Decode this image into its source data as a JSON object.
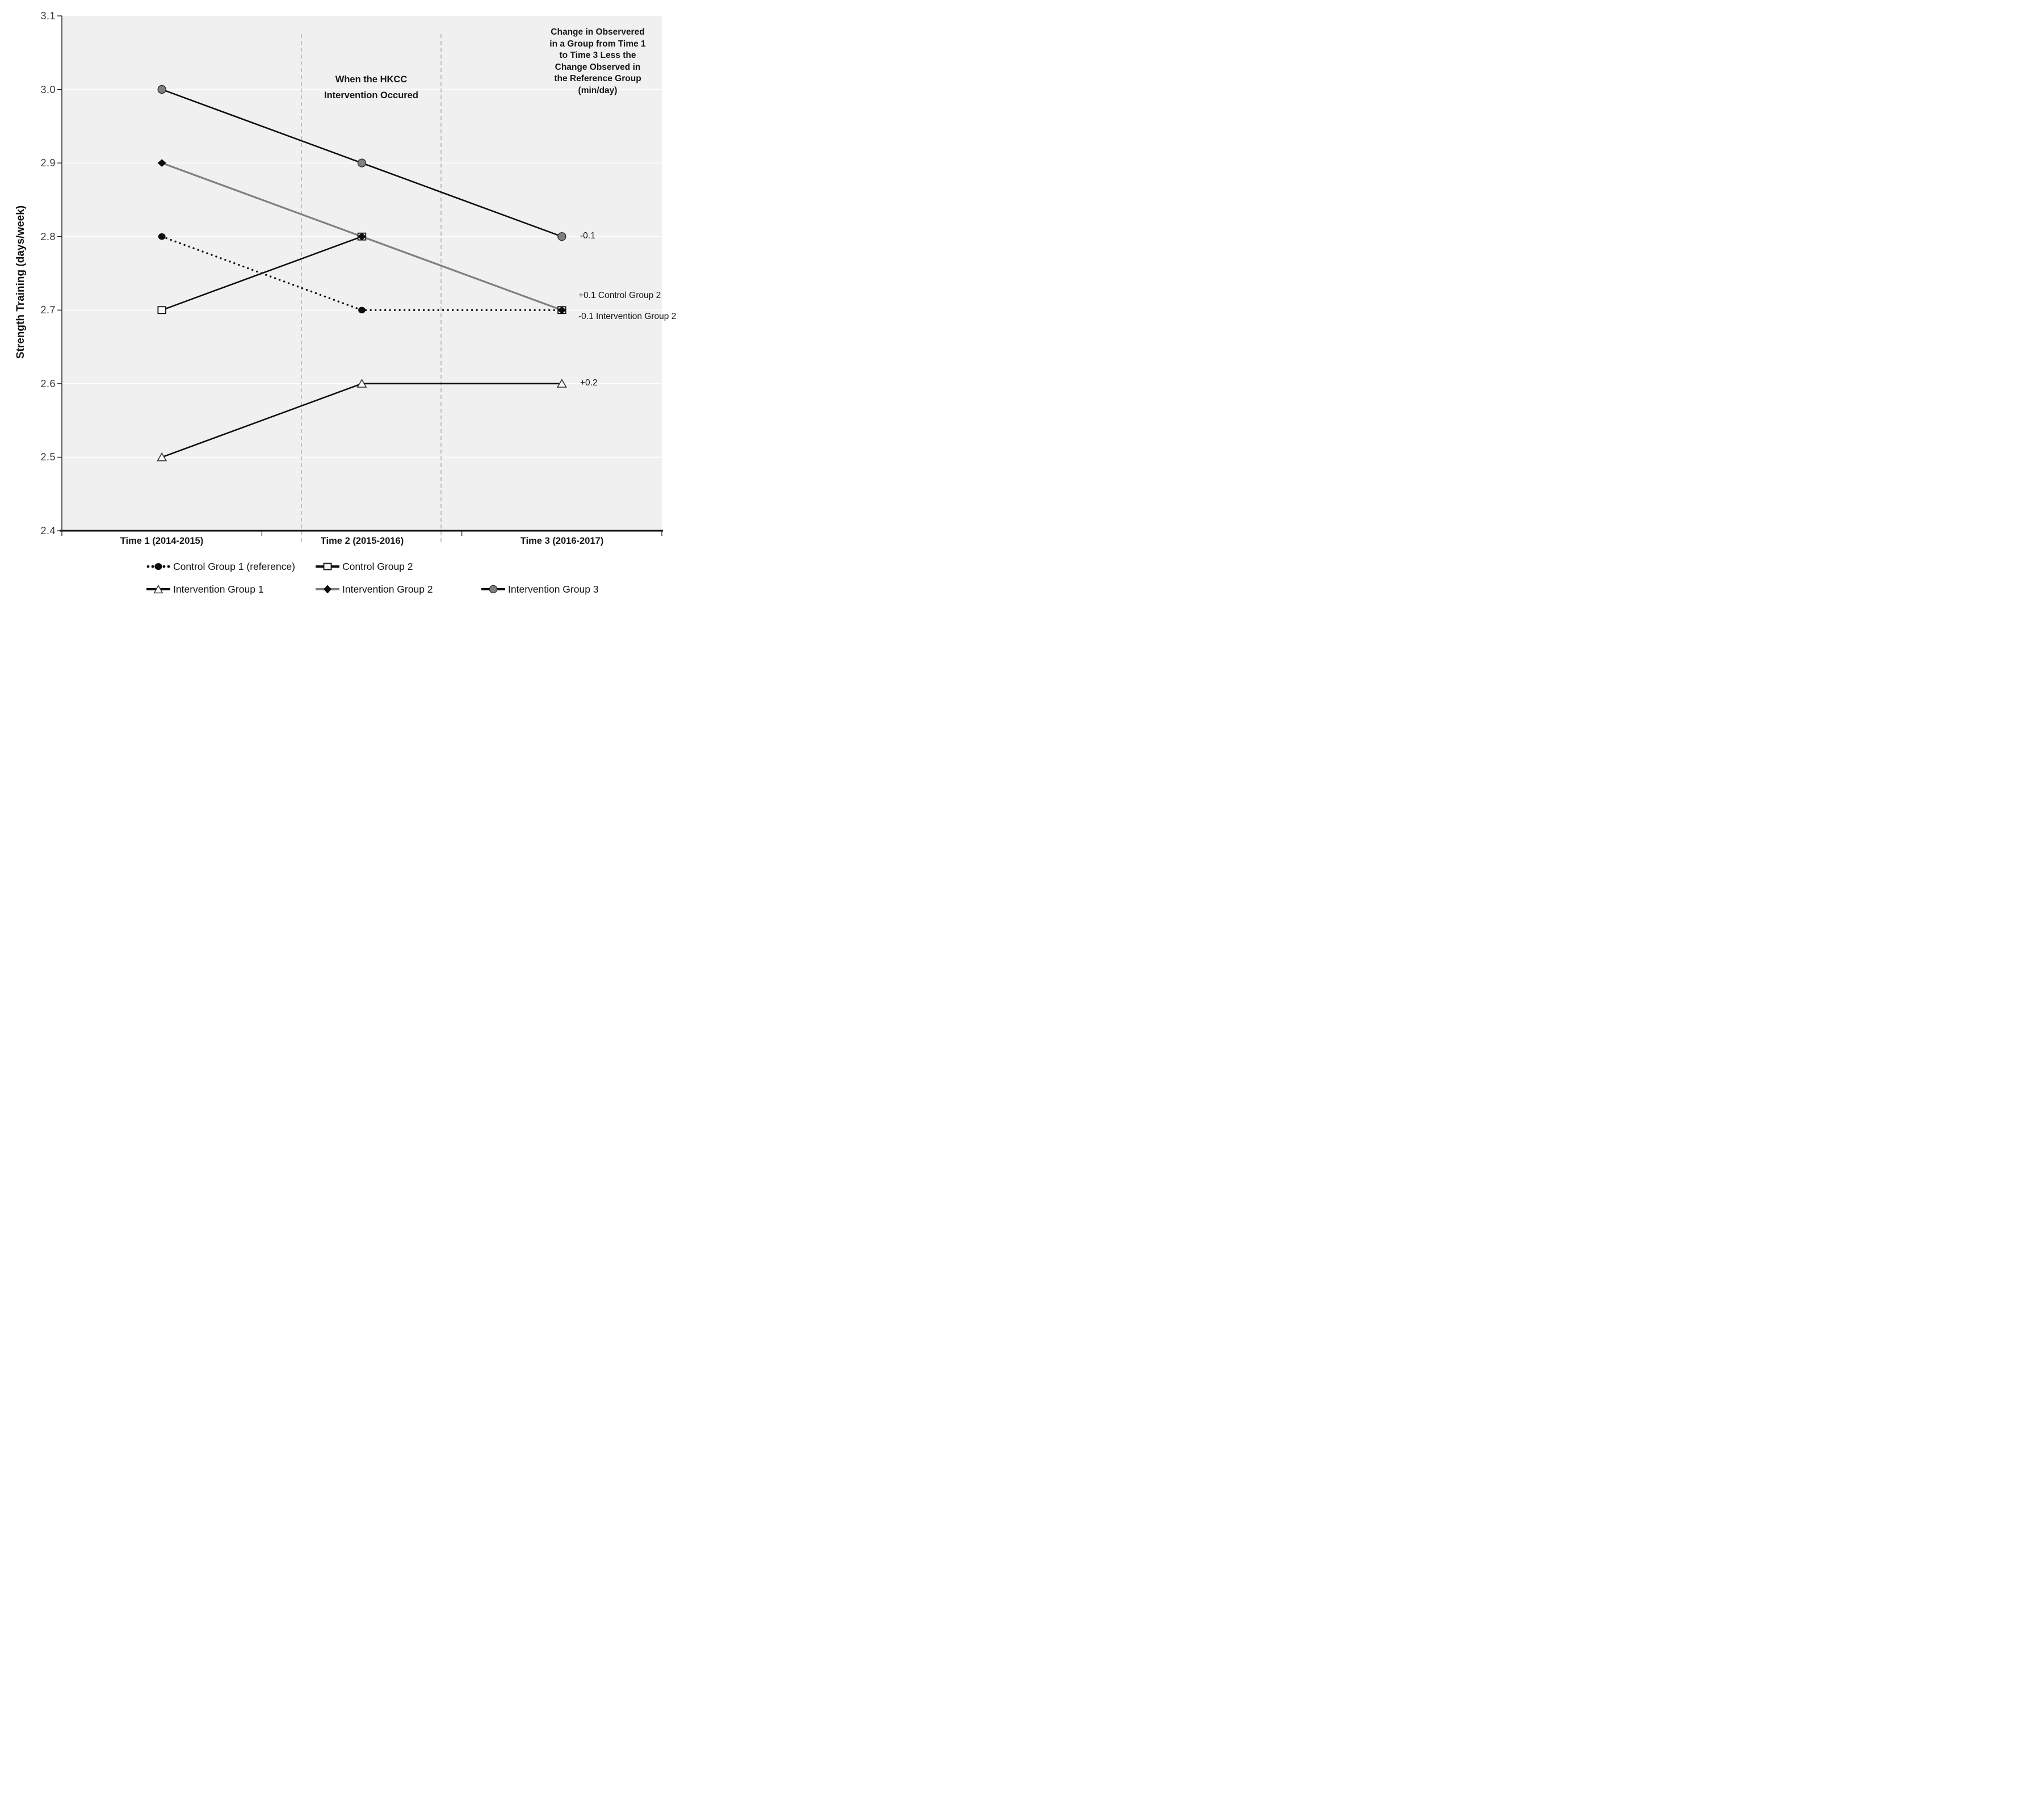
{
  "chart_data": {
    "type": "line",
    "title": "",
    "ylabel": "Strength Training (days/week)",
    "ylim": [
      2.4,
      3.1
    ],
    "ytick_labels": [
      "3.1",
      "3.0",
      "2.9",
      "2.8",
      "2.7",
      "2.6",
      "2.5",
      "2.4"
    ],
    "categories": [
      "Time 1 (2014-2015)",
      "Time 2 (2015-2016)",
      "Time 3 (2016-2017)"
    ],
    "grid": "horizontal white gridlines on light-gray plot area",
    "legend_position": "bottom",
    "plot_bg_color": "#f0f0f0",
    "series": [
      {
        "name": "Control Group 1 (reference)",
        "values": [
          2.8,
          2.7,
          2.7
        ],
        "line_style": "dotted",
        "line_color": "#0d0d0d",
        "marker": "filled-circle"
      },
      {
        "name": "Control Group 2",
        "values": [
          2.7,
          2.8,
          2.7
        ],
        "line_style": "solid",
        "line_color": "#0d0d0d",
        "marker": "open-square"
      },
      {
        "name": "Intervention Group 1",
        "values": [
          2.5,
          2.6,
          2.6
        ],
        "line_style": "solid",
        "line_color": "#0d0d0d",
        "marker": "open-triangle"
      },
      {
        "name": "Intervention Group 2",
        "values": [
          2.9,
          2.8,
          2.7
        ],
        "line_style": "solid",
        "line_color": "#808080",
        "marker": "filled-diamond"
      },
      {
        "name": "Intervention Group 3",
        "values": [
          3.0,
          2.9,
          2.8
        ],
        "line_style": "solid",
        "line_color": "#0d0d0d",
        "marker": "gray-circle"
      }
    ],
    "vertical_dashed_lines": [
      "between Time 1 and Time 2",
      "between Time 2 and Time 3"
    ]
  },
  "annotations": {
    "intervention_window": [
      "When the HKCC",
      "Intervention Occured"
    ],
    "change_note": [
      "Change in Observered",
      "in a Group from Time 1",
      "to Time 3 Less the",
      "Change Observed in",
      "the Reference Group",
      "(min/day)"
    ],
    "ig3_delta": "-0.1",
    "cg2_delta": "+0.1 Control Group 2",
    "ig2_delta": "-0.1 Intervention Group 2",
    "ig1_delta": "+0.2"
  }
}
